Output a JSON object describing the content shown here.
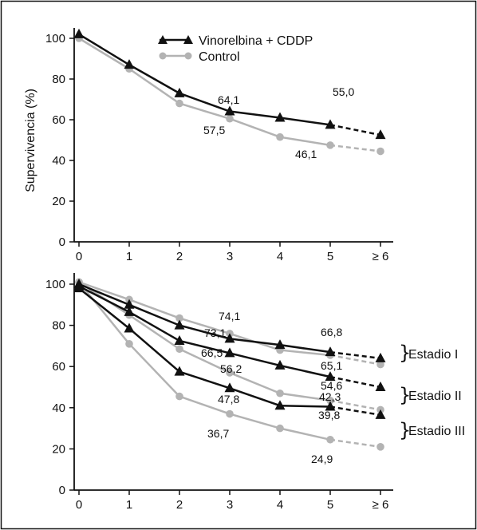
{
  "chart_data": [
    {
      "type": "line",
      "x_ticks": [
        "0",
        "1",
        "2",
        "3",
        "4",
        "5",
        "≥ 6"
      ],
      "ylabel": "Supervivencia (%)",
      "ylim": [
        0,
        100
      ],
      "y_ticks": [
        "0",
        "20",
        "40",
        "60",
        "80",
        "100"
      ],
      "series": [
        {
          "name": "Vinorelbina + CDDP",
          "color": "#111111",
          "marker": "triangle",
          "values": [
            102,
            87,
            73,
            64.1,
            61,
            57.5,
            52.5
          ]
        },
        {
          "name": "Control",
          "color": "#b3b3b3",
          "marker": "circle",
          "values": [
            100,
            85,
            68,
            60.5,
            51.5,
            47.5,
            44.5
          ]
        }
      ],
      "annotations": [
        {
          "text": "64,1",
          "x": 3
        },
        {
          "text": "55,0",
          "x": 5
        },
        {
          "text": "57,5",
          "x": 3
        },
        {
          "text": "46,1",
          "x": 5
        }
      ],
      "legend": "top"
    },
    {
      "type": "line",
      "x_ticks": [
        "0",
        "1",
        "2",
        "3",
        "4",
        "5",
        "≥ 6"
      ],
      "ylim": [
        0,
        100
      ],
      "y_ticks": [
        "0",
        "20",
        "40",
        "60",
        "80",
        "100"
      ],
      "series": [
        {
          "group": "Estadio I",
          "arm": "Vinorelbina + CDDP",
          "color": "#111111",
          "marker": "triangle",
          "values": [
            100,
            90,
            80,
            73.5,
            70.5,
            67,
            64
          ]
        },
        {
          "group": "Estadio I",
          "arm": "Control",
          "color": "#b3b3b3",
          "marker": "circle",
          "values": [
            101,
            92.5,
            83.5,
            76,
            68,
            65.5,
            61
          ]
        },
        {
          "group": "Estadio II",
          "arm": "Vinorelbina + CDDP",
          "color": "#111111",
          "marker": "triangle",
          "values": [
            99,
            86.5,
            72.5,
            66.5,
            60.5,
            55,
            50
          ]
        },
        {
          "group": "Estadio II",
          "arm": "Control",
          "color": "#b3b3b3",
          "marker": "circle",
          "values": [
            101,
            85,
            68.5,
            57,
            47,
            43.5,
            39
          ]
        },
        {
          "group": "Estadio III",
          "arm": "Vinorelbina + CDDP",
          "color": "#111111",
          "marker": "triangle",
          "values": [
            98,
            78.5,
            57.5,
            49.5,
            41,
            40.5,
            36.5
          ]
        },
        {
          "group": "Estadio III",
          "arm": "Control",
          "color": "#b3b3b3",
          "marker": "circle",
          "values": [
            101,
            71,
            45.5,
            37,
            30,
            24.5,
            21
          ]
        }
      ],
      "annotations": [
        {
          "text": "74,1",
          "x": 3
        },
        {
          "text": "73,1",
          "x": 3
        },
        {
          "text": "66,5",
          "x": 3
        },
        {
          "text": "56,2",
          "x": 3
        },
        {
          "text": "47,8",
          "x": 3
        },
        {
          "text": "36,7",
          "x": 3
        },
        {
          "text": "66,8",
          "x": 5
        },
        {
          "text": "65,1",
          "x": 5
        },
        {
          "text": "54,6",
          "x": 5
        },
        {
          "text": "42,3",
          "x": 5
        },
        {
          "text": "39,8",
          "x": 5
        },
        {
          "text": "24,9",
          "x": 5
        }
      ],
      "stage_labels": [
        "Estadio I",
        "Estadio II",
        "Estadio III"
      ]
    }
  ]
}
